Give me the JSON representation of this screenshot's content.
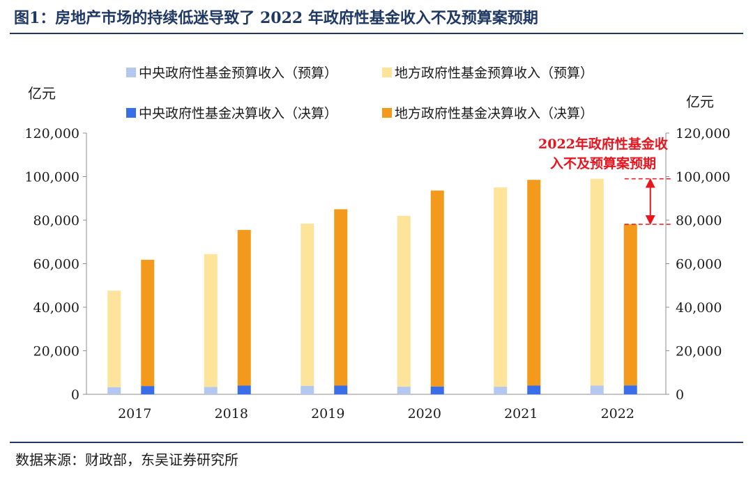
{
  "figure": {
    "title": "图1：房地产市场的持续低迷导致了 2022 年政府性基金收入不及预算案预期",
    "source": "数据来源：财政部，东吴证券研究所"
  },
  "chart_data": {
    "type": "bar",
    "title": "",
    "categories": [
      "2017",
      "2018",
      "2019",
      "2020",
      "2021",
      "2022"
    ],
    "ylim": [
      0,
      120000
    ],
    "yticks": [
      "0",
      "20,000",
      "40,000",
      "60,000",
      "80,000",
      "100,000",
      "120,000"
    ],
    "yticks_right": [
      "0",
      "20,000",
      "40,000",
      "60,000",
      "80,000",
      "100,000",
      "120,000"
    ],
    "ylabel": "亿元",
    "ylabel_right": "亿元",
    "grid": false,
    "legend_position": "top",
    "groups": [
      {
        "name": "预算",
        "stacked": [
          {
            "name": "中央政府性基金预算收入（预算）",
            "color": "#b4c7f0",
            "values": [
              3300,
              3400,
              3900,
              3500,
              3500,
              4000
            ]
          },
          {
            "name": "地方政府性基金预算收入（预算）",
            "color": "#fde49a",
            "values": [
              44300,
              61000,
              74500,
              78500,
              91500,
              95000
            ]
          }
        ]
      },
      {
        "name": "决算",
        "stacked": [
          {
            "name": "中央政府性基金决算收入（决算）",
            "color": "#3a6ee8",
            "values": [
              3800,
              4000,
              4000,
              3600,
              4000,
              4100
            ]
          },
          {
            "name": "地方政府性基金决算收入（决算）",
            "color": "#f39a1c",
            "values": [
              58000,
              71500,
              81000,
              90000,
              94500,
              74000
            ]
          }
        ]
      }
    ],
    "annotation": {
      "text_line1": "2022年政府性基金收",
      "text_line2": "入不及预算案预期",
      "from_value": 99000,
      "to_value": 78100,
      "color": "#e8141e"
    }
  }
}
